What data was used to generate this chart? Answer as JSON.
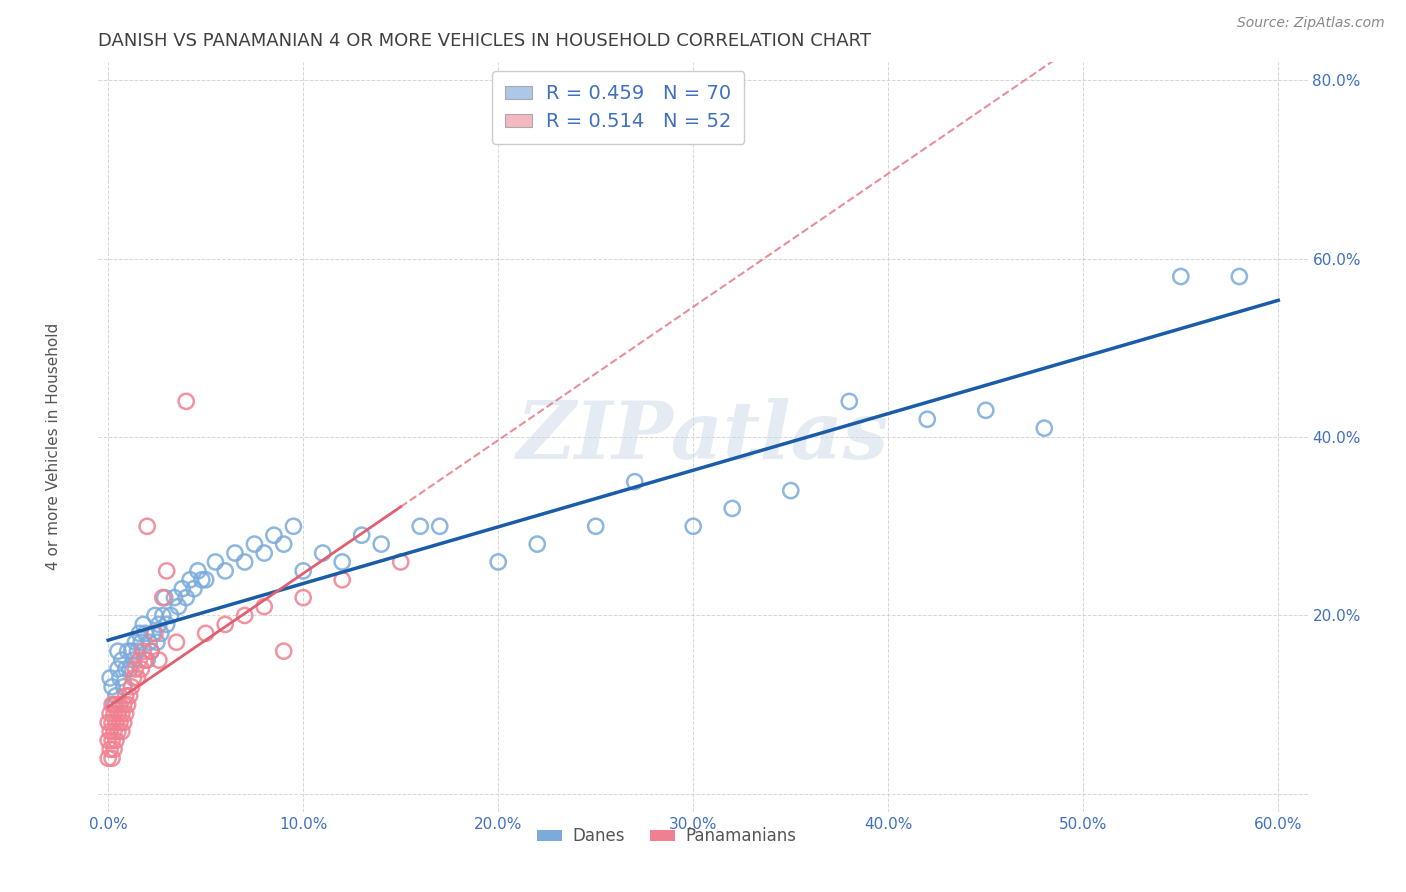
{
  "title": "DANISH VS PANAMANIAN 4 OR MORE VEHICLES IN HOUSEHOLD CORRELATION CHART",
  "source": "Source: ZipAtlas.com",
  "ylabel": "4 or more Vehicles in Household",
  "xlim": [
    -0.005,
    0.615
  ],
  "ylim": [
    -0.02,
    0.82
  ],
  "xtick_vals": [
    0.0,
    0.1,
    0.2,
    0.3,
    0.4,
    0.5,
    0.6
  ],
  "ytick_vals": [
    0.0,
    0.2,
    0.4,
    0.6,
    0.8
  ],
  "legend_entries": [
    {
      "label": "R = 0.459   N = 70",
      "facecolor": "#aec6e8"
    },
    {
      "label": "R = 0.514   N = 52",
      "facecolor": "#f4b8c1"
    }
  ],
  "legend_labels": [
    "Danes",
    "Panamanians"
  ],
  "danes_color": "#7aabdb",
  "panamanians_color": "#f08090",
  "danes_line_color": "#1a5ca8",
  "panamanians_line_color": "#e06070",
  "watermark": "ZIPatlas",
  "background_color": "#ffffff",
  "grid_color": "#cccccc",
  "title_color": "#404040",
  "axis_color": "#4070c0",
  "danes_x": [
    0.001,
    0.002,
    0.003,
    0.004,
    0.005,
    0.005,
    0.006,
    0.007,
    0.008,
    0.009,
    0.01,
    0.011,
    0.012,
    0.013,
    0.014,
    0.015,
    0.016,
    0.017,
    0.018,
    0.019,
    0.02,
    0.021,
    0.022,
    0.023,
    0.024,
    0.025,
    0.026,
    0.027,
    0.028,
    0.029,
    0.03,
    0.032,
    0.034,
    0.036,
    0.038,
    0.04,
    0.042,
    0.044,
    0.046,
    0.048,
    0.05,
    0.055,
    0.06,
    0.065,
    0.07,
    0.075,
    0.08,
    0.085,
    0.09,
    0.095,
    0.1,
    0.11,
    0.12,
    0.13,
    0.14,
    0.16,
    0.17,
    0.2,
    0.22,
    0.25,
    0.27,
    0.3,
    0.32,
    0.35,
    0.38,
    0.42,
    0.45,
    0.48,
    0.55,
    0.58
  ],
  "danes_y": [
    0.13,
    0.12,
    0.1,
    0.11,
    0.14,
    0.16,
    0.13,
    0.15,
    0.12,
    0.14,
    0.16,
    0.14,
    0.16,
    0.15,
    0.17,
    0.16,
    0.18,
    0.17,
    0.19,
    0.18,
    0.15,
    0.17,
    0.16,
    0.18,
    0.2,
    0.17,
    0.19,
    0.18,
    0.2,
    0.22,
    0.19,
    0.2,
    0.22,
    0.21,
    0.23,
    0.22,
    0.24,
    0.23,
    0.25,
    0.24,
    0.24,
    0.26,
    0.25,
    0.27,
    0.26,
    0.28,
    0.27,
    0.29,
    0.28,
    0.3,
    0.25,
    0.27,
    0.26,
    0.29,
    0.28,
    0.3,
    0.3,
    0.26,
    0.28,
    0.3,
    0.35,
    0.3,
    0.32,
    0.34,
    0.44,
    0.42,
    0.43,
    0.41,
    0.58,
    0.58
  ],
  "panamanians_x": [
    0.0,
    0.0,
    0.0,
    0.001,
    0.001,
    0.001,
    0.002,
    0.002,
    0.002,
    0.002,
    0.003,
    0.003,
    0.003,
    0.004,
    0.004,
    0.004,
    0.005,
    0.005,
    0.006,
    0.006,
    0.007,
    0.007,
    0.008,
    0.008,
    0.009,
    0.009,
    0.01,
    0.011,
    0.012,
    0.013,
    0.014,
    0.015,
    0.016,
    0.017,
    0.018,
    0.019,
    0.02,
    0.022,
    0.024,
    0.026,
    0.028,
    0.03,
    0.035,
    0.04,
    0.05,
    0.06,
    0.07,
    0.08,
    0.09,
    0.1,
    0.12,
    0.15
  ],
  "panamanians_y": [
    0.04,
    0.06,
    0.08,
    0.05,
    0.07,
    0.09,
    0.04,
    0.06,
    0.08,
    0.1,
    0.05,
    0.07,
    0.09,
    0.06,
    0.08,
    0.1,
    0.07,
    0.09,
    0.08,
    0.1,
    0.07,
    0.09,
    0.08,
    0.1,
    0.09,
    0.11,
    0.1,
    0.11,
    0.12,
    0.13,
    0.14,
    0.13,
    0.15,
    0.14,
    0.16,
    0.15,
    0.3,
    0.16,
    0.18,
    0.15,
    0.22,
    0.25,
    0.17,
    0.44,
    0.18,
    0.19,
    0.2,
    0.21,
    0.16,
    0.22,
    0.24,
    0.26
  ]
}
